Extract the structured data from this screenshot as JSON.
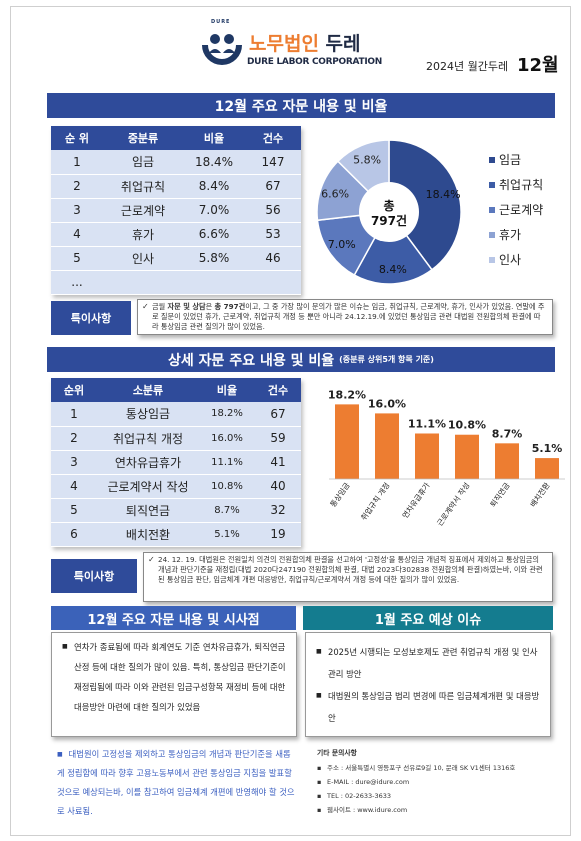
{
  "header": {
    "logo_small": "DURE",
    "logo_ko_orange": "노무법인",
    "logo_ko_dark": "두레",
    "logo_en": "DURE LABOR CORPORATION",
    "issue_label": "2024년 월간두레",
    "issue_month": "12월"
  },
  "section1": {
    "title": "12월 주요 자문 내용 및 비율",
    "table": {
      "headers": [
        "순 위",
        "중분류",
        "비율",
        "건수"
      ],
      "rows": [
        [
          "1",
          "임금",
          "18.4%",
          "147"
        ],
        [
          "2",
          "취업규칙",
          "8.4%",
          "67"
        ],
        [
          "3",
          "근로계약",
          "7.0%",
          "56"
        ],
        [
          "4",
          "휴가",
          "6.6%",
          "53"
        ],
        [
          "5",
          "인사",
          "5.8%",
          "46"
        ],
        [
          "...",
          "",
          "",
          ""
        ]
      ]
    },
    "note_label": "특이사항",
    "note_pre": "금월 ",
    "note_bold1": "자문 및 상담",
    "note_mid1": "은 ",
    "note_bold2": "총 797건",
    "note_rest": "이고, 그 중 가장 많이 문의가 많은 이슈는 임금, 취업규칙, 근로계약, 휴가, 인사가 있었음. 연말에 주로 질문이 있었던 휴가, 근로계약, 취업규칙 개정 등 뿐만 아니라 24.12.19.에 있었던 통상임금 관련 대법원 전원합의체 판결에 따라 통상임금 관련 질의가 많이 있었음."
  },
  "pie_chart": {
    "chart_data": {
      "type": "pie",
      "center_label_1": "총",
      "center_label_2": "797건",
      "slices": [
        {
          "name": "임금",
          "value": 18.4,
          "label": "18.4%",
          "color": "#2e4a8f"
        },
        {
          "name": "취업규칙",
          "value": 8.4,
          "label": "8.4%",
          "color": "#3d5ca6"
        },
        {
          "name": "근로계약",
          "value": 7.0,
          "label": "7.0%",
          "color": "#5b78bd"
        },
        {
          "name": "휴가",
          "value": 6.6,
          "label": "6.6%",
          "color": "#8da2d3"
        },
        {
          "name": "인사",
          "value": 5.8,
          "label": "5.8%",
          "color": "#b8c6e6"
        }
      ]
    }
  },
  "section2": {
    "title": "상세 자문 주요 내용 및 비율",
    "subtitle": "(중분류 상위5개 항목 기준)",
    "table": {
      "headers": [
        "순위",
        "소분류",
        "비율",
        "건수"
      ],
      "rows": [
        [
          "1",
          "통상임금",
          "18.2%",
          "67"
        ],
        [
          "2",
          "취업규칙 개정",
          "16.0%",
          "59"
        ],
        [
          "3",
          "연차유급휴가",
          "11.1%",
          "41"
        ],
        [
          "4",
          "근로계약서 작성",
          "10.8%",
          "40"
        ],
        [
          "5",
          "퇴직연금",
          "8.7%",
          "32"
        ],
        [
          "6",
          "배치전환",
          "5.1%",
          "19"
        ]
      ]
    },
    "note_label": "특이사항",
    "note_text": "24. 12. 19. 대법원은 전원일치 의견의 전원합의체 판결을 선고하여 '고정성'을 통상임금 개념적 징표에서 제외하고 통상임금의 개념과 판단기준을 재정립(대법 2020다247190 전원합의체 판결, 대법 2023다302838 전원합의체 판결)하였는바, 이와 관련된 통상임금 판단, 임금체계 개편 대응방안, 취업규칙/근로계약서 개정 등에 대한 질의가 많이 있었음."
  },
  "bar_chart": {
    "chart_data": {
      "type": "bar",
      "categories": [
        "통상임금",
        "취업규칙 개정",
        "연차유급휴가",
        "근로계약서 작성",
        "퇴직연금",
        "배치전환"
      ],
      "values": [
        18.2,
        16.0,
        11.1,
        10.8,
        8.7,
        5.1
      ],
      "labels": [
        "18.2%",
        "16.0%",
        "11.1%",
        "10.8%",
        "8.7%",
        "5.1%"
      ],
      "color": "#ed7d31",
      "ylim": [
        0,
        20
      ]
    }
  },
  "bottom": {
    "left_title": "12월 주요 자문 내용 및 시사점",
    "left_item": "연차가 종료됨에 따라 회계연도 기준 연차유급휴가, 퇴직연금 산정 등에 대한 질의가 많이 있음. 특히, 통상임금 판단기준이 재정립됨에 따라 이와 관련된 임금구성항목 재정비 등에 대한 대응방안 마련에 대한 질의가 있었음",
    "right_title": "1월 주요 예상 이슈",
    "right_items": [
      "2025년 시행되는 모성보호제도 관련 취업규칙 개정 및 인사관리 방안",
      "대법원의 통상임금 법리 변경에 따른 임금체계개편 및 대응방안"
    ],
    "blue_text": "대법원이 고정성을 제외하고 통상임금의 개념과 판단기준을 새롭게 정립함에 따라 향후 고용노동부에서 관련 통상임금 지침을 발표할 것으로 예상되는바, 이를 참고하여 임금체계 개편에 반영해야 할 것으로 사료됨."
  },
  "contact": {
    "title": "기타 문의사항",
    "address": "주소 : 서울특별시 영등포구 선유로9길 10, 문래 SK V1센터 1316호",
    "email": "E-MAIL : dure@idure.com",
    "tel": "TEL : 02-2633-3633",
    "web": "웹사이트 : www.idure.com"
  }
}
